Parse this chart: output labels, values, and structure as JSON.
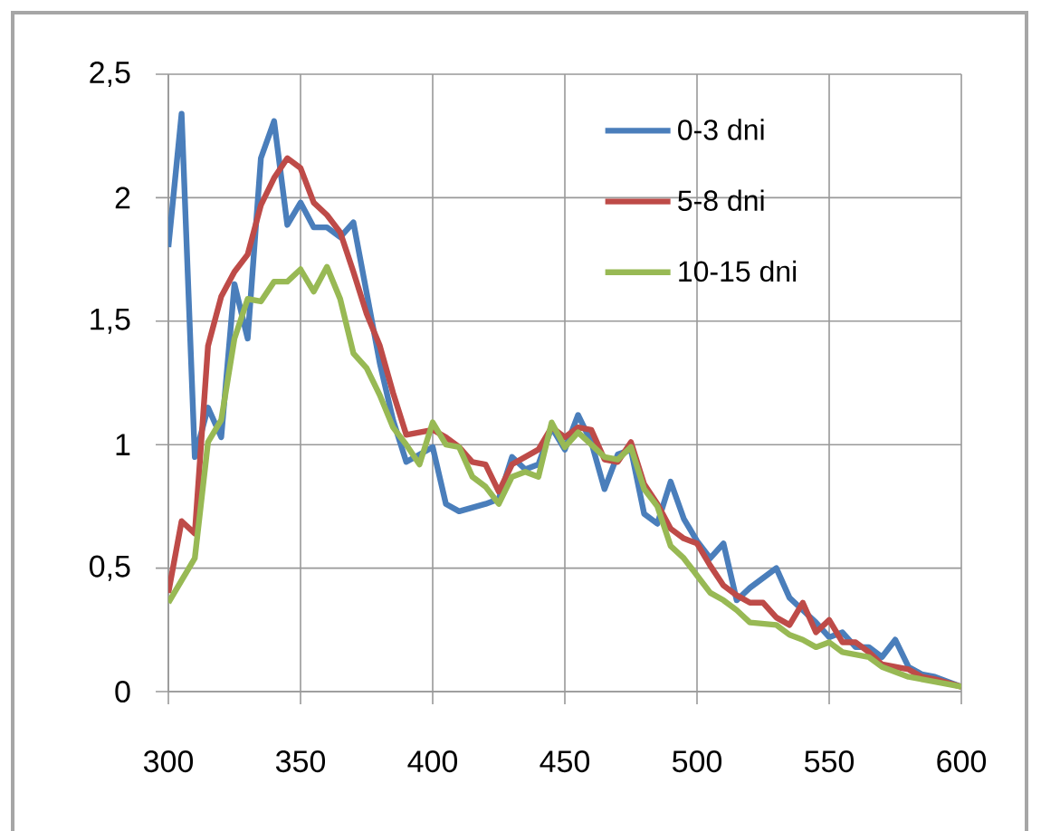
{
  "chart_data": {
    "type": "line",
    "xlim": [
      300,
      600
    ],
    "ylim": [
      0,
      2.5
    ],
    "xticks": [
      300,
      350,
      400,
      450,
      500,
      550,
      600
    ],
    "yticks": [
      {
        "value": 0,
        "label": "0"
      },
      {
        "value": 0.5,
        "label": "0,5"
      },
      {
        "value": 1,
        "label": "1"
      },
      {
        "value": 1.5,
        "label": "1,5"
      },
      {
        "value": 2,
        "label": "2"
      },
      {
        "value": 2.5,
        "label": "2,5"
      }
    ],
    "grid": true,
    "legend": "top right",
    "marker": "none",
    "line_style": "solid",
    "series": [
      {
        "name": "0-3 dni",
        "color": "#4a7ebb",
        "x": [
          300,
          305,
          310,
          315,
          320,
          325,
          330,
          335,
          340,
          345,
          350,
          355,
          360,
          365,
          370,
          380,
          385,
          390,
          395,
          400,
          405,
          410,
          420,
          425,
          430,
          435,
          440,
          445,
          450,
          455,
          460,
          465,
          470,
          475,
          480,
          485,
          490,
          495,
          500,
          505,
          510,
          515,
          520,
          530,
          535,
          540,
          545,
          550,
          555,
          560,
          565,
          570,
          575,
          580,
          585,
          590,
          600
        ],
        "values": [
          1.8,
          2.34,
          0.95,
          1.15,
          1.03,
          1.65,
          1.43,
          2.16,
          2.31,
          1.89,
          1.98,
          1.88,
          1.88,
          1.84,
          1.9,
          1.33,
          1.1,
          0.93,
          0.96,
          0.99,
          0.76,
          0.73,
          0.76,
          0.78,
          0.95,
          0.9,
          0.92,
          1.07,
          0.98,
          1.12,
          1.01,
          0.82,
          0.96,
          0.98,
          0.72,
          0.68,
          0.85,
          0.7,
          0.61,
          0.54,
          0.6,
          0.37,
          0.42,
          0.5,
          0.38,
          0.33,
          0.28,
          0.22,
          0.24,
          0.18,
          0.18,
          0.14,
          0.21,
          0.1,
          0.07,
          0.06,
          0.02
        ]
      },
      {
        "name": "5-8 dni",
        "color": "#be4b48",
        "x": [
          300,
          305,
          310,
          315,
          320,
          325,
          330,
          335,
          340,
          345,
          350,
          355,
          360,
          365,
          370,
          375,
          380,
          385,
          390,
          400,
          405,
          410,
          415,
          420,
          425,
          430,
          440,
          445,
          450,
          455,
          460,
          465,
          470,
          475,
          480,
          485,
          490,
          495,
          500,
          505,
          510,
          515,
          520,
          525,
          530,
          535,
          540,
          545,
          550,
          555,
          560,
          565,
          570,
          580,
          585,
          590,
          600
        ],
        "values": [
          0.4,
          0.69,
          0.64,
          1.4,
          1.6,
          1.7,
          1.77,
          1.97,
          2.08,
          2.16,
          2.12,
          1.98,
          1.93,
          1.86,
          1.7,
          1.53,
          1.4,
          1.21,
          1.04,
          1.06,
          1.03,
          0.99,
          0.93,
          0.92,
          0.81,
          0.92,
          0.98,
          1.07,
          1.03,
          1.07,
          1.06,
          0.94,
          0.93,
          1.01,
          0.84,
          0.76,
          0.66,
          0.62,
          0.6,
          0.51,
          0.43,
          0.39,
          0.36,
          0.36,
          0.3,
          0.27,
          0.36,
          0.24,
          0.29,
          0.2,
          0.2,
          0.16,
          0.11,
          0.09,
          0.06,
          0.05,
          0.02
        ]
      },
      {
        "name": "10-15 dni",
        "color": "#98b954",
        "x": [
          300,
          310,
          315,
          320,
          325,
          330,
          335,
          340,
          345,
          350,
          355,
          360,
          365,
          370,
          375,
          380,
          385,
          390,
          395,
          400,
          405,
          410,
          415,
          420,
          425,
          430,
          435,
          440,
          445,
          450,
          455,
          460,
          465,
          470,
          475,
          480,
          485,
          490,
          495,
          500,
          505,
          510,
          515,
          520,
          530,
          535,
          540,
          545,
          550,
          555,
          565,
          570,
          580,
          590,
          600
        ],
        "values": [
          0.36,
          0.54,
          1.01,
          1.1,
          1.43,
          1.59,
          1.58,
          1.66,
          1.66,
          1.71,
          1.62,
          1.72,
          1.59,
          1.37,
          1.31,
          1.2,
          1.07,
          1.0,
          0.92,
          1.09,
          1.0,
          0.99,
          0.87,
          0.83,
          0.76,
          0.87,
          0.89,
          0.87,
          1.09,
          0.99,
          1.05,
          1.0,
          0.95,
          0.94,
          0.99,
          0.82,
          0.75,
          0.59,
          0.54,
          0.47,
          0.4,
          0.37,
          0.33,
          0.28,
          0.27,
          0.23,
          0.21,
          0.18,
          0.2,
          0.16,
          0.14,
          0.1,
          0.06,
          0.04,
          0.02
        ]
      }
    ]
  }
}
